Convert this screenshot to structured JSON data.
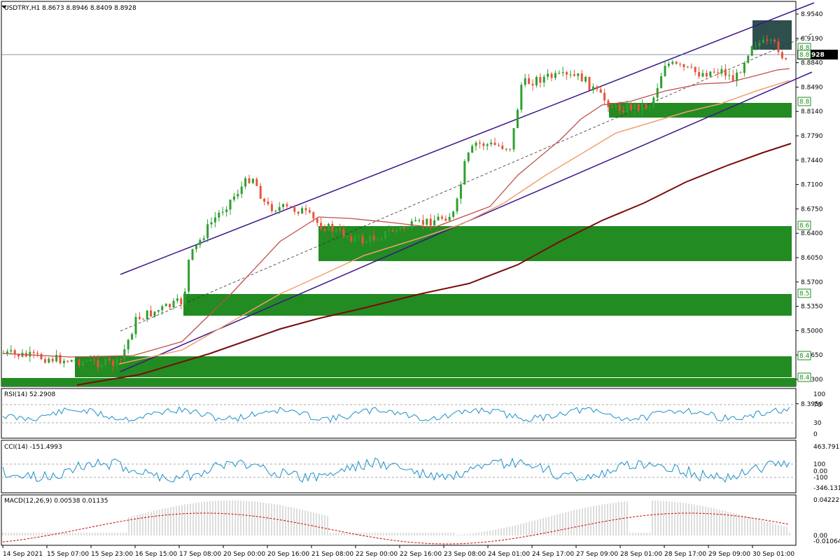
{
  "symbol_header": "USDTRY,H1  8.8673 8.8946 8.8409 8.8928",
  "price_scale": {
    "labels": [
      "8.9540",
      "8.9190",
      "8.8840",
      "8.8490",
      "8.8140",
      "8.7790",
      "8.7440",
      "8.7100",
      "8.6750",
      "8.6400",
      "8.6050",
      "8.5700",
      "8.5350",
      "8.5000",
      "8.4650",
      "8.4300",
      "8.3950"
    ],
    "current_price": "8.8928",
    "zone_tags": [
      "8.8",
      "8.8",
      "8.8",
      "8.6",
      "8.5",
      "8.4",
      "8.4"
    ]
  },
  "time_axis": [
    "14 Sep 2021",
    "15 Sep 07:00",
    "15 Sep 23:00",
    "16 Sep 15:00",
    "17 Sep 08:00",
    "20 Sep 00:00",
    "20 Sep 16:00",
    "21 Sep 08:00",
    "22 Sep 00:00",
    "22 Sep 16:00",
    "23 Sep 08:00",
    "24 Sep 01:00",
    "24 Sep 17:00",
    "27 Sep 09:00",
    "28 Sep 01:00",
    "28 Sep 17:00",
    "29 Sep 09:00",
    "30 Sep 01:00"
  ],
  "rsi": {
    "label": "RSI(14) 52.2908",
    "scale": [
      "100",
      "70",
      "30",
      "0"
    ]
  },
  "cci": {
    "label": "CCI(14) -151.4993",
    "scale": [
      "463.791",
      "100",
      "0.00",
      "-100",
      "-346.131"
    ]
  },
  "macd": {
    "label": "MACD(12,26,9) 0.00538 0.01135",
    "scale": [
      "0.04222",
      "0.00",
      "-0.01064"
    ]
  },
  "colors": {
    "bull": "#2ea02e",
    "bear": "#e8543c",
    "zone": "#228b22",
    "channel": "#3c148c",
    "ma_fast": "#c0504d",
    "ma_mid": "#f0a070",
    "ma_slow": "#7a0a0a",
    "indicator": "#1e90c8",
    "signal": "#d00000"
  }
}
